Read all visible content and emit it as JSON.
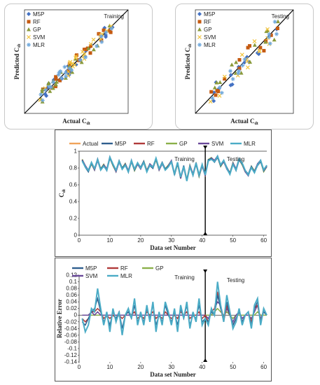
{
  "charts": [
    {
      "id": "scatter_training",
      "chart_data": {
        "type": "scatter",
        "label": "Training",
        "xlabel": "Actual C",
        "xlabel_sub": "dt",
        "ylabel": "Predicted C",
        "ylabel_sub": "dt",
        "xlim": [
          0.6,
          1.0
        ],
        "ylim": [
          0.6,
          1.0
        ],
        "legend": [
          {
            "name": "M5P",
            "color": "#4472c4",
            "marker": "diamond"
          },
          {
            "name": "RF",
            "color": "#c55a11",
            "marker": "square"
          },
          {
            "name": "GP",
            "color": "#8a9a3a",
            "marker": "triangle"
          },
          {
            "name": "SVM",
            "color": "#f2c43d",
            "marker": "x"
          },
          {
            "name": "MLR",
            "color": "#6fa8dc",
            "marker": "star"
          }
        ]
      }
    },
    {
      "id": "scatter_testing",
      "chart_data": {
        "type": "scatter",
        "label": "Testing",
        "xlabel": "Actual C",
        "xlabel_sub": "dt",
        "ylabel": "Predicted C",
        "ylabel_sub": "dt",
        "xlim": [
          0.6,
          1.0
        ],
        "ylim": [
          0.6,
          1.0
        ],
        "legend": [
          {
            "name": "M5P",
            "color": "#4472c4",
            "marker": "diamond"
          },
          {
            "name": "RF",
            "color": "#c55a11",
            "marker": "square"
          },
          {
            "name": "GP",
            "color": "#8a9a3a",
            "marker": "triangle"
          },
          {
            "name": "SVM",
            "color": "#f2c43d",
            "marker": "x"
          },
          {
            "name": "MLR",
            "color": "#6fa8dc",
            "marker": "star"
          }
        ]
      }
    },
    {
      "id": "line_cdt",
      "chart_data": {
        "type": "line",
        "xlabel": "Data set Number",
        "ylabel": "C",
        "ylabel_sub": "dt",
        "xlim": [
          0,
          61
        ],
        "ylim": [
          0,
          1
        ],
        "xticks": [
          "0",
          "10",
          "20",
          "30",
          "40",
          "50",
          "60"
        ],
        "yticks": [
          "0",
          "0.2",
          "0.4",
          "0.6",
          "0.8",
          "1"
        ],
        "annotations": [
          "Training",
          "Testing"
        ],
        "divider_x": 41,
        "legend": [
          {
            "name": "Actual",
            "color": "#f0a35a"
          },
          {
            "name": "M5P",
            "color": "#2f5f8f"
          },
          {
            "name": "RF",
            "color": "#b03a3a"
          },
          {
            "name": "GP",
            "color": "#8bb04a"
          },
          {
            "name": "SVM",
            "color": "#6a4a9a"
          },
          {
            "name": "MLR",
            "color": "#4bacc6"
          }
        ],
        "series_base": [
          0.9,
          0.82,
          0.76,
          0.85,
          0.78,
          0.9,
          0.79,
          0.84,
          0.78,
          0.92,
          0.83,
          0.76,
          0.88,
          0.8,
          0.85,
          0.76,
          0.88,
          0.77,
          0.85,
          0.8,
          0.88,
          0.77,
          0.84,
          0.8,
          0.9,
          0.78,
          0.86,
          0.79,
          0.83,
          0.88,
          0.72,
          0.85,
          0.68,
          0.82,
          0.66,
          0.83,
          0.72,
          0.85,
          0.7,
          0.83,
          0.72,
          0.9,
          0.92,
          0.88,
          0.93,
          0.82,
          0.88,
          0.8,
          0.74,
          0.86,
          0.78,
          0.9,
          0.84,
          0.76,
          0.72,
          0.82,
          0.76,
          0.84,
          0.88,
          0.76,
          0.82
        ]
      }
    },
    {
      "id": "line_error",
      "chart_data": {
        "type": "line",
        "xlabel": "Data set Number",
        "ylabel": "Relative Error",
        "xlim": [
          0,
          61
        ],
        "ylim": [
          -0.14,
          0.12
        ],
        "xticks": [
          "0",
          "10",
          "20",
          "30",
          "40",
          "50",
          "60"
        ],
        "yticks": [
          "0.12",
          "0.1",
          "0.08",
          "0.06",
          "0.04",
          "0.02",
          "0",
          "-0.02",
          "-0.04",
          "-0.06",
          "-0.08",
          "-0.1",
          "-0.12",
          "-0.14"
        ],
        "annotations": [
          "Training",
          "Testing"
        ],
        "divider_x": 41,
        "legend": [
          {
            "name": "M5P",
            "color": "#2f5f8f"
          },
          {
            "name": "RF",
            "color": "#b03a3a"
          },
          {
            "name": "GP",
            "color": "#8bb04a"
          },
          {
            "name": "SVM",
            "color": "#6a4a9a"
          },
          {
            "name": "MLR",
            "color": "#4bacc6"
          }
        ],
        "series": [
          {
            "name": "MLR",
            "values": [
              -0.01,
              -0.05,
              -0.03,
              0.02,
              0.01,
              0.08,
              0.02,
              -0.03,
              0.01,
              -0.05,
              0.02,
              -0.02,
              0.01,
              -0.06,
              0.0,
              0.02,
              -0.01,
              0.05,
              -0.03,
              0.01,
              -0.03,
              0.03,
              -0.02,
              0.04,
              -0.05,
              0.01,
              -0.03,
              0.04,
              0.01,
              -0.03,
              0.02,
              -0.05,
              0.03,
              -0.01,
              0.04,
              -0.04,
              0.01,
              -0.02,
              0.05,
              -0.03,
              -0.01,
              -0.03,
              0.02,
              0.0,
              0.1,
              0.03,
              -0.02,
              0.06,
              0.01,
              -0.04,
              -0.02,
              0.02,
              -0.03,
              0.0,
              0.01,
              -0.04,
              0.03,
              0.05,
              -0.03,
              0.02,
              0.0
            ]
          },
          {
            "name": "M5P",
            "values": [
              -0.02,
              -0.03,
              -0.01,
              0.01,
              0.02,
              0.05,
              0.01,
              -0.02,
              0.0,
              -0.03,
              0.01,
              -0.01,
              0.01,
              -0.04,
              0.0,
              0.01,
              -0.01,
              0.03,
              -0.02,
              0.0,
              -0.02,
              0.02,
              -0.01,
              0.03,
              -0.03,
              0.0,
              -0.02,
              0.03,
              0.0,
              -0.02,
              0.01,
              -0.03,
              0.02,
              -0.01,
              0.03,
              -0.03,
              0.0,
              -0.01,
              0.03,
              -0.02,
              -0.01,
              -0.02,
              0.01,
              0.0,
              0.06,
              0.02,
              -0.01,
              0.04,
              0.0,
              -0.03,
              -0.01,
              0.01,
              -0.02,
              0.0,
              0.01,
              -0.03,
              0.02,
              0.04,
              -0.02,
              0.01,
              0.0
            ]
          },
          {
            "name": "RF",
            "values": [
              -0.01,
              -0.02,
              -0.01,
              0.01,
              0.01,
              0.02,
              0.01,
              -0.01,
              0.0,
              -0.01,
              0.0,
              -0.01,
              0.0,
              -0.01,
              0.0,
              0.01,
              0.0,
              0.01,
              -0.01,
              0.0,
              -0.01,
              0.01,
              0.0,
              0.01,
              -0.01,
              0.0,
              -0.01,
              0.01,
              0.0,
              -0.01,
              0.0,
              -0.01,
              0.01,
              0.0,
              0.01,
              -0.01,
              0.0,
              0.0,
              0.01,
              -0.01,
              0.0,
              -0.02,
              0.01,
              0.02,
              0.07,
              0.02,
              -0.02,
              0.03,
              0.0,
              -0.03,
              -0.01,
              0.01,
              -0.02,
              0.0,
              0.01,
              -0.02,
              0.02,
              0.03,
              -0.02,
              0.02,
              0.0
            ]
          },
          {
            "name": "SVM",
            "values": [
              0.0,
              0.0,
              0.0,
              0.01,
              0.0,
              0.01,
              0.0,
              0.0,
              0.0,
              0.0,
              0.0,
              0.0,
              0.0,
              0.0,
              0.0,
              0.0,
              0.0,
              0.0,
              0.0,
              0.0,
              0.0,
              0.0,
              0.0,
              0.0,
              0.0,
              0.0,
              0.0,
              0.0,
              0.0,
              0.0,
              0.0,
              0.0,
              0.0,
              0.0,
              0.0,
              0.0,
              0.0,
              0.0,
              0.0,
              0.0,
              0.0,
              -0.01,
              0.01,
              0.02,
              0.04,
              0.03,
              -0.01,
              0.02,
              0.0,
              -0.02,
              0.0,
              0.01,
              -0.01,
              0.0,
              0.0,
              -0.01,
              0.01,
              0.03,
              -0.01,
              0.01,
              0.0
            ]
          },
          {
            "name": "GP",
            "values": [
              0.0,
              0.0,
              0.0,
              0.0,
              0.0,
              0.0,
              0.0,
              0.0,
              0.0,
              0.0,
              0.0,
              0.0,
              0.0,
              0.0,
              0.0,
              0.0,
              0.0,
              0.0,
              0.0,
              0.0,
              0.0,
              0.0,
              0.0,
              0.0,
              0.0,
              0.0,
              0.0,
              0.0,
              0.0,
              0.0,
              0.0,
              0.0,
              0.0,
              0.0,
              0.0,
              0.0,
              0.0,
              0.0,
              0.0,
              0.0,
              0.0,
              0.0,
              0.0,
              0.01,
              0.02,
              0.01,
              0.0,
              0.01,
              0.0,
              -0.01,
              0.0,
              0.0,
              0.0,
              0.0,
              0.0,
              0.0,
              0.0,
              0.01,
              0.0,
              0.0,
              0.0
            ]
          }
        ]
      }
    }
  ]
}
